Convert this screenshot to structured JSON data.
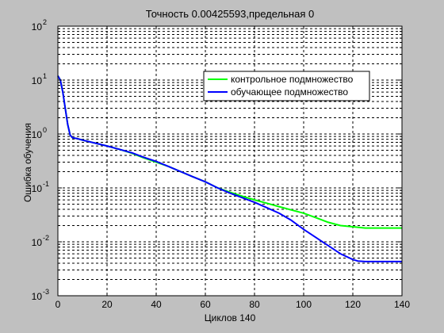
{
  "chart_data": {
    "type": "line",
    "title": "Точность  0.00425593,предельная  0",
    "xlabel": "Циклов 140",
    "ylabel": "Ошибка обучения",
    "xlim": [
      0,
      140
    ],
    "ylim": [
      0.001,
      100
    ],
    "yscale": "log",
    "xticks": [
      "0",
      "20",
      "40",
      "60",
      "80",
      "100",
      "120",
      "140"
    ],
    "yticks": [
      {
        "base": "10",
        "exp": "-3"
      },
      {
        "base": "10",
        "exp": "-2"
      },
      {
        "base": "10",
        "exp": "-1"
      },
      {
        "base": "10",
        "exp": "0"
      },
      {
        "base": "10",
        "exp": "1"
      },
      {
        "base": "10",
        "exp": "2"
      }
    ],
    "grid": true,
    "legend_position": "top-right",
    "background": "#c0c0c0",
    "plot_background": "#ffffff",
    "series": [
      {
        "name": "контрольное подмножество",
        "color": "#00ff00",
        "x": [
          0,
          1,
          2,
          3,
          4,
          5,
          6,
          8,
          10,
          15,
          20,
          25,
          30,
          35,
          40,
          45,
          50,
          55,
          60,
          65,
          70,
          75,
          80,
          85,
          90,
          95,
          100,
          105,
          110,
          115,
          120,
          125,
          130,
          135,
          140
        ],
        "y": [
          12,
          10,
          6,
          3,
          1.5,
          0.95,
          0.85,
          0.82,
          0.77,
          0.68,
          0.6,
          0.52,
          0.44,
          0.36,
          0.3,
          0.25,
          0.2,
          0.16,
          0.13,
          0.1,
          0.083,
          0.07,
          0.06,
          0.052,
          0.045,
          0.039,
          0.034,
          0.028,
          0.023,
          0.02,
          0.019,
          0.018,
          0.018,
          0.018,
          0.018
        ]
      },
      {
        "name": "обучающее подмножество",
        "color": "#0000ff",
        "x": [
          0,
          1,
          2,
          3,
          4,
          5,
          6,
          8,
          10,
          15,
          20,
          25,
          30,
          35,
          40,
          45,
          50,
          55,
          60,
          65,
          70,
          75,
          80,
          85,
          90,
          95,
          100,
          105,
          110,
          115,
          120,
          122,
          125,
          130,
          135,
          140
        ],
        "y": [
          12,
          10,
          6,
          3,
          1.5,
          0.95,
          0.85,
          0.82,
          0.77,
          0.68,
          0.6,
          0.52,
          0.45,
          0.37,
          0.31,
          0.25,
          0.2,
          0.16,
          0.13,
          0.1,
          0.08,
          0.066,
          0.054,
          0.043,
          0.034,
          0.025,
          0.017,
          0.012,
          0.0085,
          0.006,
          0.0047,
          0.0044,
          0.0043,
          0.0043,
          0.0043,
          0.0043
        ]
      }
    ]
  }
}
